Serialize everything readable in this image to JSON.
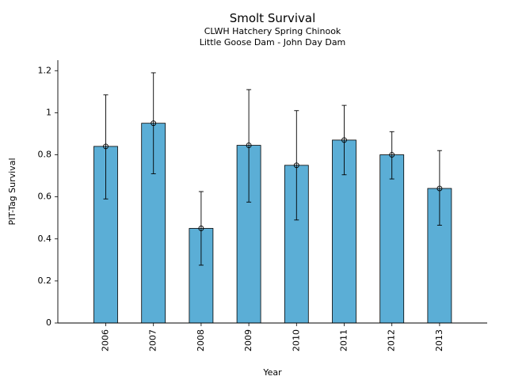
{
  "chart_data": {
    "type": "bar",
    "title": "Smolt Survival",
    "subtitle_lines": [
      "CLWH Hatchery Spring Chinook",
      "Little Goose Dam - John Day Dam"
    ],
    "xlabel": "Year",
    "ylabel": "PIT-Tag Survival",
    "categories": [
      "2006",
      "2007",
      "2008",
      "2009",
      "2010",
      "2011",
      "2012",
      "2013"
    ],
    "series": [
      {
        "values": [
          0.84,
          0.95,
          0.45,
          0.845,
          0.75,
          0.87,
          0.8,
          0.64
        ],
        "error_low": [
          0.59,
          0.71,
          0.275,
          0.575,
          0.49,
          0.705,
          0.685,
          0.465
        ],
        "error_high": [
          1.085,
          1.19,
          0.625,
          1.11,
          1.01,
          1.035,
          0.91,
          0.82
        ]
      }
    ],
    "ylim": [
      0,
      1.25
    ],
    "yticks": [
      0,
      0.2,
      0.4,
      0.6,
      0.8,
      1,
      1.2
    ],
    "ytick_labels": [
      "0",
      "0.2",
      "0.4",
      "0.6",
      "0.8",
      "1",
      "1.2"
    ],
    "grid": false,
    "legend": "none",
    "bar_color": "#5baed6",
    "edge_color": "#000000"
  }
}
